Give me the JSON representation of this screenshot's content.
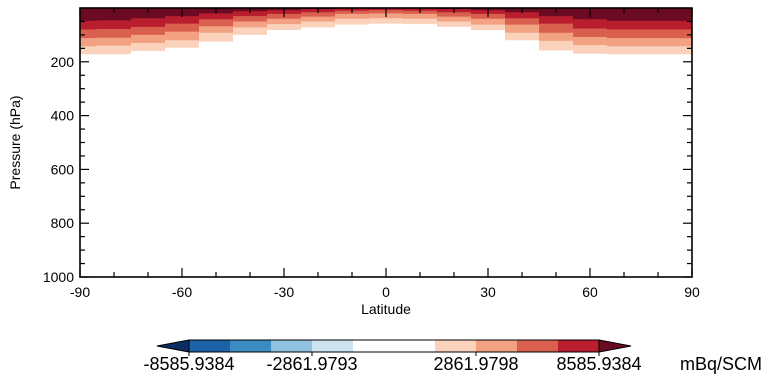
{
  "chart_data": {
    "type": "heatmap",
    "title": "",
    "xlabel": "Latitude",
    "ylabel": "Pressure (hPa)",
    "xlim": [
      -90,
      90
    ],
    "ylim": [
      1000,
      0
    ],
    "y_inverted": true,
    "x_ticks": [
      -90,
      -60,
      -30,
      0,
      30,
      60,
      90
    ],
    "x_tick_labels": [
      "-90",
      "-60",
      "-30",
      "0",
      "30",
      "60",
      "90"
    ],
    "y_ticks": [
      200,
      400,
      600,
      800,
      1000
    ],
    "y_tick_labels": [
      "200",
      "400",
      "600",
      "800",
      "1000"
    ],
    "grid": false,
    "colorbar": {
      "unit": "mBq/SCM",
      "tick_labels": [
        "-8585.9384",
        "-2861.9793",
        "2861.9798",
        "8585.9384"
      ],
      "colors": [
        "#0a2e63",
        "#1b62a7",
        "#3c8cc3",
        "#8fc2de",
        "#cde3f0",
        "#ffffff",
        "#ffffff",
        "#fbd3bd",
        "#f2a283",
        "#d9604f",
        "#b81e2e",
        "#6c0a22"
      ]
    },
    "contour_bands": [
      {
        "level": 1,
        "color": "#fbd3bd",
        "boundary": [
          [
            -90,
            172
          ],
          [
            -80,
            172
          ],
          [
            -70,
            160
          ],
          [
            -60,
            148
          ],
          [
            -50,
            125
          ],
          [
            -40,
            100
          ],
          [
            -30,
            82
          ],
          [
            -20,
            72
          ],
          [
            -10,
            62
          ],
          [
            0,
            58
          ],
          [
            10,
            60
          ],
          [
            20,
            70
          ],
          [
            30,
            82
          ],
          [
            40,
            120
          ],
          [
            50,
            158
          ],
          [
            60,
            170
          ],
          [
            70,
            172
          ],
          [
            80,
            172
          ],
          [
            90,
            172
          ]
        ]
      },
      {
        "level": 2,
        "color": "#f2a283",
        "boundary": [
          [
            -90,
            142
          ],
          [
            -80,
            140
          ],
          [
            -70,
            130
          ],
          [
            -60,
            120
          ],
          [
            -50,
            92
          ],
          [
            -40,
            72
          ],
          [
            -30,
            60
          ],
          [
            -20,
            50
          ],
          [
            -10,
            40
          ],
          [
            0,
            38
          ],
          [
            10,
            40
          ],
          [
            20,
            50
          ],
          [
            30,
            62
          ],
          [
            40,
            92
          ],
          [
            50,
            122
          ],
          [
            60,
            138
          ],
          [
            70,
            142
          ],
          [
            80,
            142
          ],
          [
            90,
            142
          ]
        ]
      },
      {
        "level": 3,
        "color": "#d9604f",
        "boundary": [
          [
            -90,
            112
          ],
          [
            -80,
            110
          ],
          [
            -70,
            100
          ],
          [
            -60,
            88
          ],
          [
            -50,
            68
          ],
          [
            -40,
            50
          ],
          [
            -30,
            40
          ],
          [
            -20,
            32
          ],
          [
            -10,
            22
          ],
          [
            0,
            20
          ],
          [
            10,
            22
          ],
          [
            20,
            32
          ],
          [
            30,
            40
          ],
          [
            40,
            62
          ],
          [
            50,
            92
          ],
          [
            60,
            108
          ],
          [
            70,
            112
          ],
          [
            80,
            112
          ],
          [
            90,
            112
          ]
        ]
      },
      {
        "level": 4,
        "color": "#b81e2e",
        "boundary": [
          [
            -90,
            80
          ],
          [
            -80,
            78
          ],
          [
            -70,
            70
          ],
          [
            -60,
            58
          ],
          [
            -50,
            42
          ],
          [
            -40,
            30
          ],
          [
            -30,
            22
          ],
          [
            -20,
            16
          ],
          [
            -10,
            10
          ],
          [
            0,
            8
          ],
          [
            10,
            10
          ],
          [
            20,
            16
          ],
          [
            30,
            22
          ],
          [
            40,
            38
          ],
          [
            50,
            58
          ],
          [
            60,
            76
          ],
          [
            70,
            80
          ],
          [
            80,
            80
          ],
          [
            90,
            80
          ]
        ]
      },
      {
        "level": 5,
        "color": "#6c0a22",
        "boundary": [
          [
            -90,
            48
          ],
          [
            -80,
            46
          ],
          [
            -70,
            38
          ],
          [
            -60,
            30
          ],
          [
            -50,
            20
          ],
          [
            -40,
            12
          ],
          [
            -30,
            8
          ],
          [
            -20,
            4
          ],
          [
            -10,
            2
          ],
          [
            0,
            1
          ],
          [
            10,
            2
          ],
          [
            20,
            4
          ],
          [
            30,
            8
          ],
          [
            40,
            16
          ],
          [
            50,
            30
          ],
          [
            60,
            42
          ],
          [
            70,
            48
          ],
          [
            80,
            48
          ],
          [
            90,
            48
          ]
        ]
      }
    ]
  }
}
